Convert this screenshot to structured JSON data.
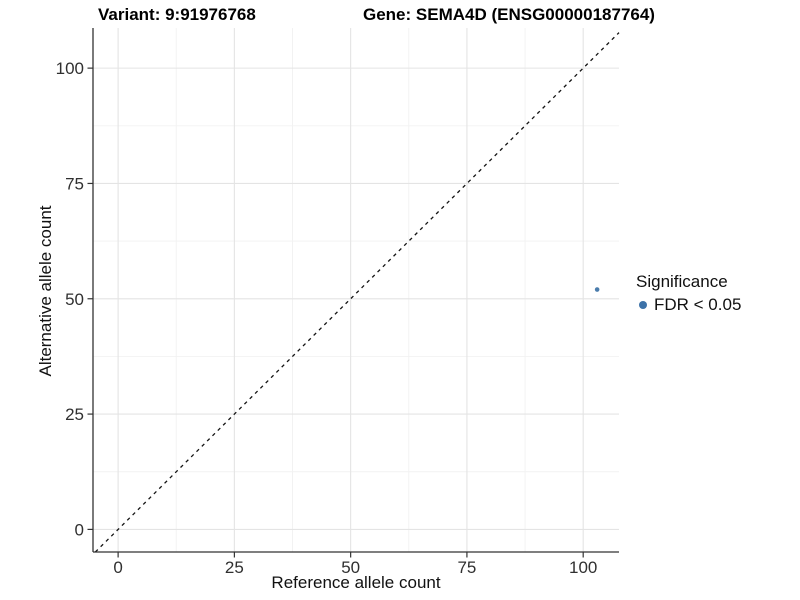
{
  "chart_data": {
    "type": "scatter",
    "titles": {
      "variant": "Variant: 9:91976768",
      "gene": "Gene: SEMA4D (ENSG00000187764)"
    },
    "xlabel": "Reference allele count",
    "ylabel": "Alternative allele count",
    "xlim": [
      -5.4,
      107.7
    ],
    "ylim": [
      -4.9,
      108.7
    ],
    "x_ticks": [
      0,
      25,
      50,
      75,
      100
    ],
    "y_ticks": [
      0,
      25,
      50,
      75,
      100
    ],
    "x_minor_ticks": [
      12.5,
      37.5,
      62.5,
      87.5
    ],
    "y_minor_ticks": [
      12.5,
      37.5,
      62.5,
      87.5
    ],
    "grid": "major and minor gridlines, white panel background",
    "points": [
      {
        "x": 103,
        "y": 52,
        "series": "FDR < 0.05"
      }
    ],
    "reference_line": {
      "slope": 1,
      "intercept": 0,
      "style": "dashed"
    },
    "legend": {
      "position": "right",
      "title": "Significance",
      "items": [
        {
          "label": "FDR < 0.05",
          "color": "#3d72a8"
        }
      ]
    },
    "colors": {
      "point": "#4a7cac",
      "legend_key": "#3d72a8",
      "grid_major": "#e4e4e4",
      "grid_minor": "#f2f2f2",
      "axis_line": "#333333",
      "tick_mark": "#333333",
      "tick_text": "#303030",
      "reference_line": "#141414",
      "background": "#ffffff"
    }
  }
}
